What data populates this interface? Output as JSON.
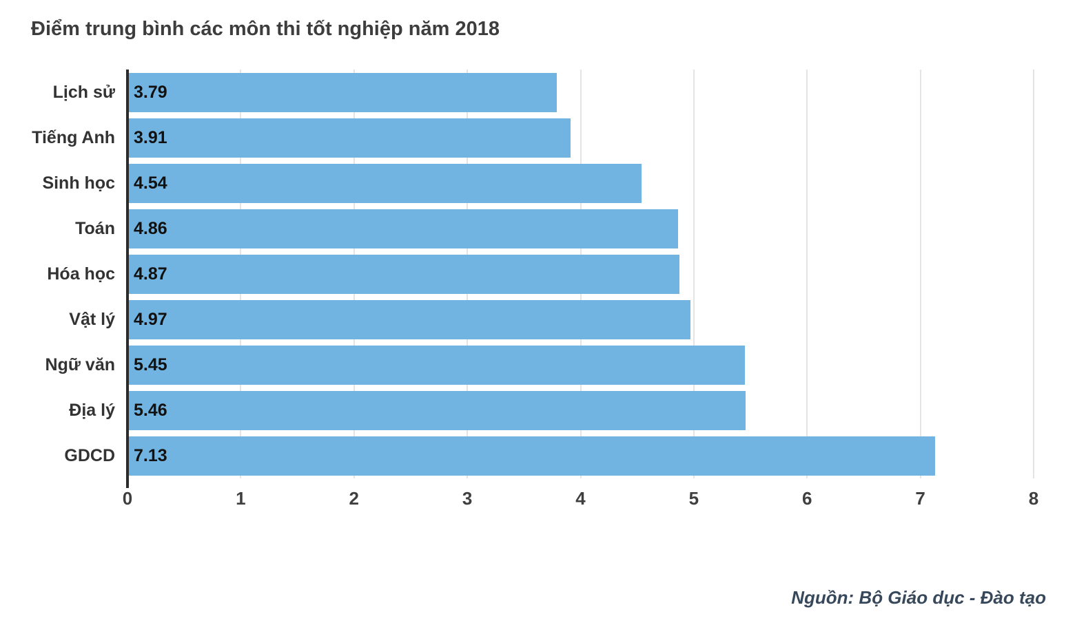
{
  "chart_data": {
    "type": "bar",
    "orientation": "horizontal",
    "title": "Điểm trung bình các môn thi tốt nghiệp năm 2018",
    "categories": [
      "Lịch sử",
      "Tiếng Anh",
      "Sinh học",
      "Toán",
      "Hóa học",
      "Vật lý",
      "Ngữ văn",
      "Địa lý",
      "GDCD"
    ],
    "values": [
      3.79,
      3.91,
      4.54,
      4.86,
      4.87,
      4.97,
      5.45,
      5.46,
      7.13
    ],
    "value_labels": [
      "3.79",
      "3.91",
      "4.54",
      "4.86",
      "4.87",
      "4.97",
      "5.45",
      "5.46",
      "7.13"
    ],
    "xlabel": "",
    "ylabel": "",
    "xlim": [
      0,
      8
    ],
    "xticks": [
      0,
      1,
      2,
      3,
      4,
      5,
      6,
      7,
      8
    ],
    "grid": "vertical",
    "legend": "none",
    "bar_color": "#72b4e1",
    "source": "Nguồn: Bộ Giáo dục - Đào tạo"
  }
}
